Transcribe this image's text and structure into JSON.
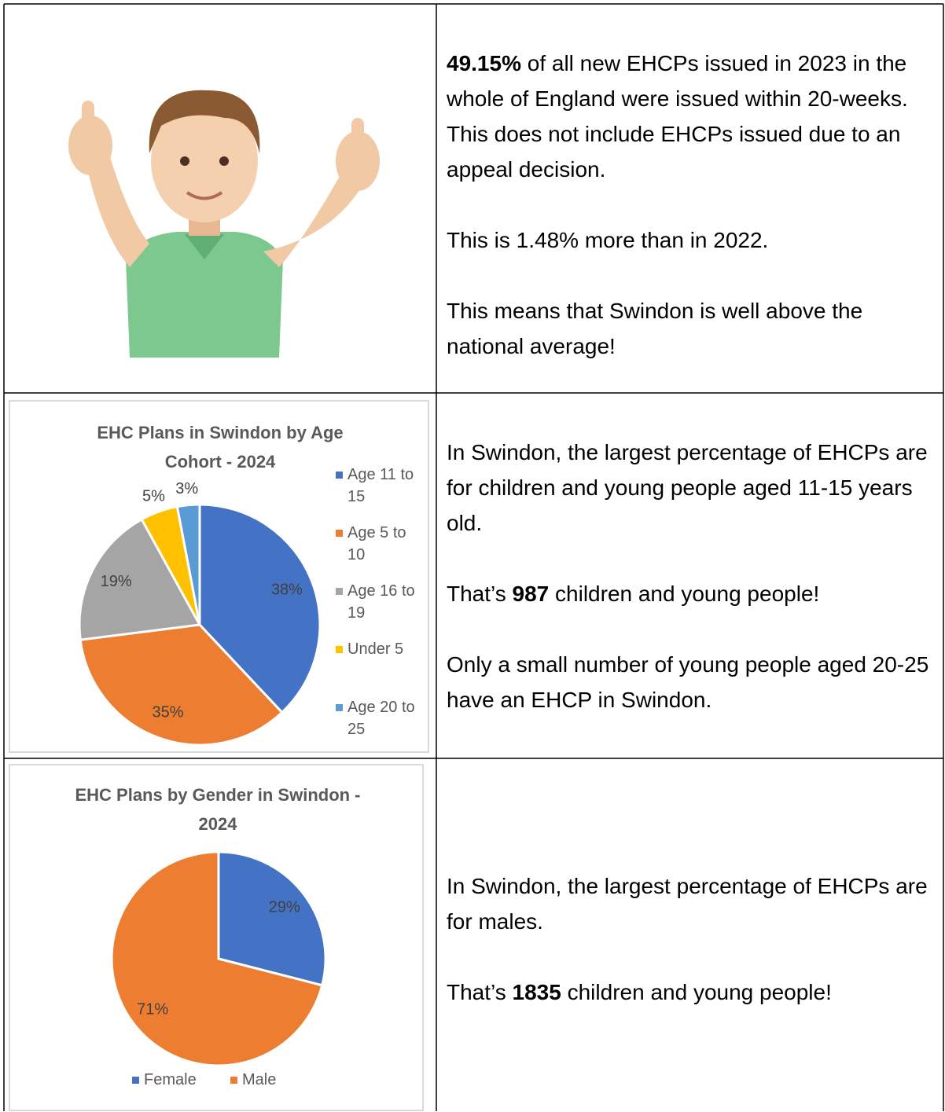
{
  "cells": [
    {
      "paragraphs": [
        [
          {
            "text": "49.15%",
            "bold": true
          },
          {
            "text": " of all new EHCPs issued in 2023 in the whole of England were issued within 20-weeks. This does not include EHCPs issued due to an appeal decision."
          }
        ],
        [
          {
            "text": "This is 1.48% more than in 2022."
          }
        ],
        [
          {
            "text": "This means that Swindon is well above the national average!"
          }
        ]
      ]
    },
    {
      "paragraphs": [
        [
          {
            "text": "In Swindon, the largest percentage of EHCPs are for children and young people aged 11-15 years old."
          }
        ],
        [
          {
            "text": "That’s "
          },
          {
            "text": "987",
            "bold": true
          },
          {
            "text": " children and young people!"
          }
        ],
        [
          {
            "text": "Only a small number of young people aged 20-25 have an EHCP in Swindon."
          }
        ]
      ]
    },
    {
      "paragraphs": [
        [
          {
            "text": "In Swindon, the largest percentage of EHCPs are for males."
          }
        ],
        [
          {
            "text": "That’s "
          },
          {
            "text": "1835",
            "bold": true
          },
          {
            "text": " children and young people!"
          }
        ]
      ]
    }
  ],
  "chart_data": [
    {
      "type": "pie",
      "title": "EHC Plans in Swindon by Age Cohort - 2024",
      "categories": [
        "Age 11 to 15",
        "Age 5 to 10",
        "Age 16 to 19",
        "Under 5",
        "Age 20 to 25"
      ],
      "values": [
        38,
        35,
        19,
        5,
        3
      ],
      "value_labels": [
        "38%",
        "35%",
        "19%",
        "5%",
        "3%"
      ],
      "colors": [
        "#4472c4",
        "#ed7d31",
        "#a5a5a5",
        "#ffc000",
        "#5b9bd5"
      ],
      "legend": "right"
    },
    {
      "type": "pie",
      "title": "EHC Plans by Gender in Swindon - 2024",
      "categories": [
        "Female",
        "Male"
      ],
      "values": [
        29,
        71
      ],
      "value_labels": [
        "29%",
        "71%"
      ],
      "colors": [
        "#4472c4",
        "#ed7d31"
      ],
      "legend": "bottom"
    }
  ]
}
